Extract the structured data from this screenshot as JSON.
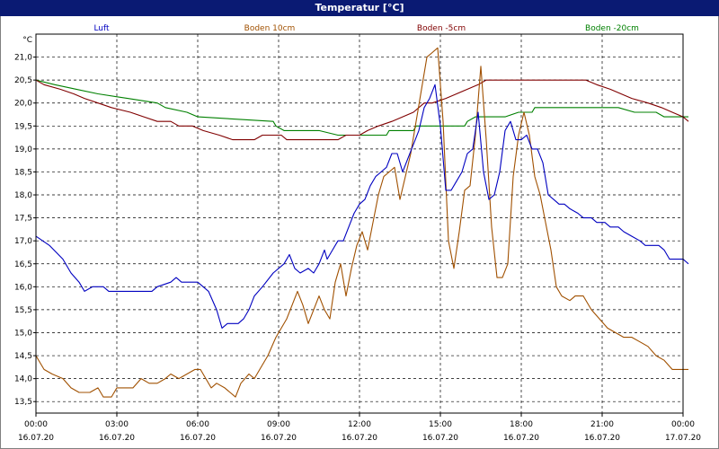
{
  "window": {
    "title": "Temperatur [°C]"
  },
  "chart_data": {
    "type": "line",
    "title": "Temperatur [°C]",
    "ylabel": "°C",
    "xlabel": "",
    "ylim": [
      13.25,
      21.5
    ],
    "xlim": [
      0,
      24
    ],
    "grid": true,
    "legend_placement": "top",
    "y_ticks": [
      "13,5",
      "14,0",
      "14,5",
      "15,0",
      "15,5",
      "16,0",
      "16,5",
      "17,0",
      "17,5",
      "18,0",
      "18,5",
      "19,0",
      "19,5",
      "20,0",
      "20,5",
      "21,0"
    ],
    "x_ticks": [
      {
        "time": "00:00",
        "date": "16.07.20"
      },
      {
        "time": "03:00",
        "date": "16.07.20"
      },
      {
        "time": "06:00",
        "date": "16.07.20"
      },
      {
        "time": "09:00",
        "date": "16.07.20"
      },
      {
        "time": "12:00",
        "date": "16.07.20"
      },
      {
        "time": "15:00",
        "date": "16.07.20"
      },
      {
        "time": "18:00",
        "date": "16.07.20"
      },
      {
        "time": "21:00",
        "date": "16.07.20"
      },
      {
        "time": "00:00",
        "date": "17.07.20"
      }
    ],
    "series": [
      {
        "name": "Luft",
        "color": "#0000c0",
        "points": [
          [
            0,
            17.1
          ],
          [
            0.5,
            16.9
          ],
          [
            1,
            16.6
          ],
          [
            1.3,
            16.3
          ],
          [
            1.6,
            16.1
          ],
          [
            1.8,
            15.9
          ],
          [
            2.1,
            16.0
          ],
          [
            2.5,
            16.0
          ],
          [
            2.7,
            15.9
          ],
          [
            3,
            15.9
          ],
          [
            4,
            15.9
          ],
          [
            4.3,
            15.9
          ],
          [
            4.5,
            16.0
          ],
          [
            5,
            16.1
          ],
          [
            5.2,
            16.2
          ],
          [
            5.4,
            16.1
          ],
          [
            6,
            16.1
          ],
          [
            6.4,
            15.9
          ],
          [
            6.7,
            15.5
          ],
          [
            6.9,
            15.1
          ],
          [
            7.1,
            15.2
          ],
          [
            7.5,
            15.2
          ],
          [
            7.7,
            15.3
          ],
          [
            7.9,
            15.5
          ],
          [
            8.1,
            15.8
          ],
          [
            8.4,
            16.0
          ],
          [
            8.8,
            16.3
          ],
          [
            9.2,
            16.5
          ],
          [
            9.4,
            16.7
          ],
          [
            9.6,
            16.4
          ],
          [
            9.8,
            16.3
          ],
          [
            10.1,
            16.4
          ],
          [
            10.3,
            16.3
          ],
          [
            10.5,
            16.5
          ],
          [
            10.7,
            16.8
          ],
          [
            10.8,
            16.6
          ],
          [
            11.0,
            16.8
          ],
          [
            11.2,
            17.0
          ],
          [
            11.4,
            17.0
          ],
          [
            11.6,
            17.3
          ],
          [
            11.8,
            17.6
          ],
          [
            12.0,
            17.8
          ],
          [
            12.2,
            17.9
          ],
          [
            12.4,
            18.2
          ],
          [
            12.6,
            18.4
          ],
          [
            12.8,
            18.5
          ],
          [
            13.0,
            18.6
          ],
          [
            13.2,
            18.9
          ],
          [
            13.4,
            18.9
          ],
          [
            13.6,
            18.5
          ],
          [
            13.8,
            18.8
          ],
          [
            14.0,
            19.1
          ],
          [
            14.2,
            19.4
          ],
          [
            14.4,
            19.9
          ],
          [
            14.6,
            20.1
          ],
          [
            14.8,
            20.4
          ],
          [
            15.0,
            19.5
          ],
          [
            15.2,
            18.1
          ],
          [
            15.4,
            18.1
          ],
          [
            15.6,
            18.3
          ],
          [
            15.8,
            18.5
          ],
          [
            16.0,
            18.9
          ],
          [
            16.2,
            19.0
          ],
          [
            16.4,
            19.8
          ],
          [
            16.6,
            18.5
          ],
          [
            16.8,
            17.9
          ],
          [
            17.0,
            18.0
          ],
          [
            17.2,
            18.5
          ],
          [
            17.4,
            19.4
          ],
          [
            17.6,
            19.6
          ],
          [
            17.8,
            19.2
          ],
          [
            18.0,
            19.2
          ],
          [
            18.2,
            19.3
          ],
          [
            18.4,
            19.0
          ],
          [
            18.6,
            19.0
          ],
          [
            18.8,
            18.7
          ],
          [
            19.0,
            18.0
          ],
          [
            19.2,
            17.9
          ],
          [
            19.4,
            17.8
          ],
          [
            19.6,
            17.8
          ],
          [
            19.8,
            17.7
          ],
          [
            20.1,
            17.6
          ],
          [
            20.3,
            17.5
          ],
          [
            20.6,
            17.5
          ],
          [
            20.8,
            17.4
          ],
          [
            21.1,
            17.4
          ],
          [
            21.3,
            17.3
          ],
          [
            21.6,
            17.3
          ],
          [
            21.8,
            17.2
          ],
          [
            22.1,
            17.1
          ],
          [
            22.4,
            17.0
          ],
          [
            22.6,
            16.9
          ],
          [
            23.1,
            16.9
          ],
          [
            23.3,
            16.8
          ],
          [
            23.5,
            16.6
          ],
          [
            24,
            16.6
          ],
          [
            24.2,
            16.5
          ]
        ]
      },
      {
        "name": "Boden 10cm",
        "color": "#a05000",
        "points": [
          [
            0,
            14.5
          ],
          [
            0.3,
            14.2
          ],
          [
            0.6,
            14.1
          ],
          [
            1.0,
            14.0
          ],
          [
            1.3,
            13.8
          ],
          [
            1.6,
            13.7
          ],
          [
            2.0,
            13.7
          ],
          [
            2.3,
            13.8
          ],
          [
            2.5,
            13.6
          ],
          [
            2.8,
            13.6
          ],
          [
            3.0,
            13.8
          ],
          [
            3.3,
            13.8
          ],
          [
            3.6,
            13.8
          ],
          [
            3.9,
            14.0
          ],
          [
            4.2,
            13.9
          ],
          [
            4.5,
            13.9
          ],
          [
            4.8,
            14.0
          ],
          [
            5.0,
            14.1
          ],
          [
            5.3,
            14.0
          ],
          [
            5.6,
            14.1
          ],
          [
            5.9,
            14.2
          ],
          [
            6.1,
            14.2
          ],
          [
            6.3,
            14.0
          ],
          [
            6.5,
            13.8
          ],
          [
            6.7,
            13.9
          ],
          [
            7.0,
            13.8
          ],
          [
            7.2,
            13.7
          ],
          [
            7.4,
            13.6
          ],
          [
            7.6,
            13.9
          ],
          [
            7.9,
            14.1
          ],
          [
            8.1,
            14.0
          ],
          [
            8.3,
            14.2
          ],
          [
            8.6,
            14.5
          ],
          [
            8.9,
            14.9
          ],
          [
            9.1,
            15.1
          ],
          [
            9.3,
            15.3
          ],
          [
            9.5,
            15.6
          ],
          [
            9.7,
            15.9
          ],
          [
            9.9,
            15.6
          ],
          [
            10.1,
            15.2
          ],
          [
            10.3,
            15.5
          ],
          [
            10.5,
            15.8
          ],
          [
            10.7,
            15.5
          ],
          [
            10.9,
            15.3
          ],
          [
            11.1,
            16.1
          ],
          [
            11.3,
            16.5
          ],
          [
            11.5,
            15.8
          ],
          [
            11.7,
            16.4
          ],
          [
            11.9,
            16.9
          ],
          [
            12.1,
            17.2
          ],
          [
            12.3,
            16.8
          ],
          [
            12.5,
            17.4
          ],
          [
            12.7,
            18.0
          ],
          [
            12.9,
            18.4
          ],
          [
            13.1,
            18.5
          ],
          [
            13.3,
            18.6
          ],
          [
            13.5,
            17.9
          ],
          [
            13.7,
            18.4
          ],
          [
            13.9,
            18.9
          ],
          [
            14.1,
            19.6
          ],
          [
            14.3,
            20.3
          ],
          [
            14.5,
            21.0
          ],
          [
            14.7,
            21.1
          ],
          [
            14.9,
            21.2
          ],
          [
            15.1,
            19.6
          ],
          [
            15.3,
            17.0
          ],
          [
            15.5,
            16.4
          ],
          [
            15.7,
            17.2
          ],
          [
            15.9,
            18.1
          ],
          [
            16.1,
            18.2
          ],
          [
            16.3,
            19.3
          ],
          [
            16.5,
            20.8
          ],
          [
            16.7,
            19.2
          ],
          [
            16.9,
            17.3
          ],
          [
            17.1,
            16.2
          ],
          [
            17.3,
            16.2
          ],
          [
            17.5,
            16.5
          ],
          [
            17.7,
            18.4
          ],
          [
            17.9,
            19.3
          ],
          [
            18.1,
            19.8
          ],
          [
            18.3,
            19.3
          ],
          [
            18.5,
            18.4
          ],
          [
            18.7,
            18.0
          ],
          [
            18.9,
            17.4
          ],
          [
            19.1,
            16.8
          ],
          [
            19.3,
            16.0
          ],
          [
            19.5,
            15.8
          ],
          [
            19.8,
            15.7
          ],
          [
            20.0,
            15.8
          ],
          [
            20.3,
            15.8
          ],
          [
            20.6,
            15.5
          ],
          [
            20.9,
            15.3
          ],
          [
            21.2,
            15.1
          ],
          [
            21.5,
            15.0
          ],
          [
            21.8,
            14.9
          ],
          [
            22.1,
            14.9
          ],
          [
            22.4,
            14.8
          ],
          [
            22.7,
            14.7
          ],
          [
            23.0,
            14.5
          ],
          [
            23.3,
            14.4
          ],
          [
            23.6,
            14.2
          ],
          [
            24,
            14.2
          ],
          [
            24.2,
            14.2
          ]
        ]
      },
      {
        "name": "Boden -5cm",
        "color": "#800000",
        "points": [
          [
            0,
            20.5
          ],
          [
            0.3,
            20.4
          ],
          [
            0.9,
            20.3
          ],
          [
            1.4,
            20.2
          ],
          [
            1.8,
            20.1
          ],
          [
            2.3,
            20.0
          ],
          [
            2.8,
            19.9
          ],
          [
            3.5,
            19.8
          ],
          [
            4.0,
            19.7
          ],
          [
            4.5,
            19.6
          ],
          [
            5.0,
            19.6
          ],
          [
            5.3,
            19.5
          ],
          [
            5.8,
            19.5
          ],
          [
            6.2,
            19.4
          ],
          [
            6.8,
            19.3
          ],
          [
            7.3,
            19.2
          ],
          [
            8.1,
            19.2
          ],
          [
            8.4,
            19.3
          ],
          [
            9.1,
            19.3
          ],
          [
            9.3,
            19.2
          ],
          [
            10.0,
            19.2
          ],
          [
            11.2,
            19.2
          ],
          [
            11.5,
            19.3
          ],
          [
            12.0,
            19.3
          ],
          [
            12.3,
            19.4
          ],
          [
            12.7,
            19.5
          ],
          [
            13.2,
            19.6
          ],
          [
            13.6,
            19.7
          ],
          [
            14.0,
            19.8
          ],
          [
            14.4,
            20.0
          ],
          [
            14.7,
            20.0
          ],
          [
            15.2,
            20.1
          ],
          [
            15.6,
            20.2
          ],
          [
            16.0,
            20.3
          ],
          [
            16.4,
            20.4
          ],
          [
            16.7,
            20.5
          ],
          [
            20.4,
            20.5
          ],
          [
            20.8,
            20.4
          ],
          [
            21.3,
            20.3
          ],
          [
            21.7,
            20.2
          ],
          [
            22.1,
            20.1
          ],
          [
            22.7,
            20.0
          ],
          [
            23.2,
            19.9
          ],
          [
            23.6,
            19.8
          ],
          [
            24.0,
            19.7
          ],
          [
            24.2,
            19.6
          ]
        ]
      },
      {
        "name": "Boden -20cm",
        "color": "#008000",
        "points": [
          [
            0,
            20.5
          ],
          [
            0.7,
            20.4
          ],
          [
            1.5,
            20.3
          ],
          [
            2.3,
            20.2
          ],
          [
            3.4,
            20.1
          ],
          [
            4.5,
            20.0
          ],
          [
            4.8,
            19.9
          ],
          [
            5.6,
            19.8
          ],
          [
            6.0,
            19.7
          ],
          [
            8.8,
            19.6
          ],
          [
            8.9,
            19.5
          ],
          [
            9.2,
            19.4
          ],
          [
            10.5,
            19.4
          ],
          [
            11.2,
            19.3
          ],
          [
            13.0,
            19.3
          ],
          [
            13.1,
            19.4
          ],
          [
            14.0,
            19.4
          ],
          [
            14.1,
            19.5
          ],
          [
            15.9,
            19.5
          ],
          [
            16.0,
            19.6
          ],
          [
            16.3,
            19.7
          ],
          [
            17.4,
            19.7
          ],
          [
            17.9,
            19.8
          ],
          [
            18.4,
            19.8
          ],
          [
            18.5,
            19.9
          ],
          [
            21.6,
            19.9
          ],
          [
            22.2,
            19.8
          ],
          [
            23.0,
            19.8
          ],
          [
            23.3,
            19.7
          ],
          [
            24.2,
            19.7
          ]
        ]
      }
    ]
  }
}
